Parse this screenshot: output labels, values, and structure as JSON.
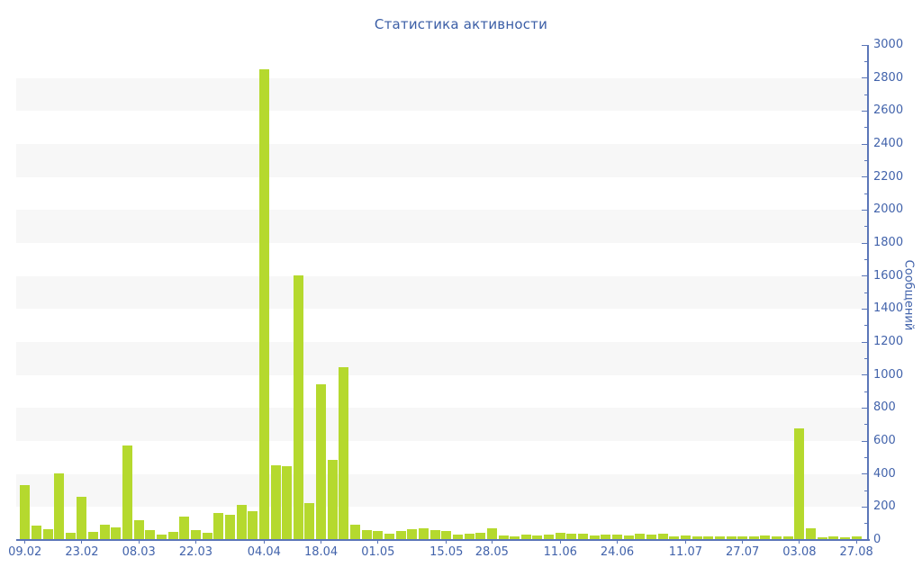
{
  "page": {
    "background": "#ffffff"
  },
  "colors": {
    "bar": "#b5d92e",
    "title_text": "#3b5ea6",
    "tick_text": "#4263ab",
    "axis_line": "#5b76b8",
    "band": "#f7f7f7"
  },
  "chart_data": {
    "type": "bar",
    "title": "Статистика активности",
    "xlabel": "",
    "ylabel": "Сообщений",
    "ylim": [
      0,
      3000
    ],
    "y_major_step": 200,
    "y_minor_step": 100,
    "y_axis_side": "right",
    "legend": "none",
    "grid": "alternating horizontal gray bands every 200 units (200-400, 600-800, 1000-1200, 1400-1600, 1800-2000, 2200-2400, 2600-2800)",
    "y_tick_labels": [
      "0",
      "200",
      "400",
      "600",
      "800",
      "1000",
      "1200",
      "1400",
      "1600",
      "1800",
      "2000",
      "2200",
      "2400",
      "2600",
      "2800",
      "3000"
    ],
    "x_tick_labels": [
      "09.02",
      "23.02",
      "08.03",
      "22.03",
      "04.04",
      "18.04",
      "01.05",
      "15.05",
      "28.05",
      "11.06",
      "24.06",
      "11.07",
      "27.07",
      "03.08",
      "27.08"
    ],
    "x_tick_bar_index": [
      1,
      6,
      11,
      16,
      22,
      27,
      32,
      38,
      42,
      48,
      53,
      59,
      64,
      69,
      74
    ],
    "values": [
      330,
      80,
      60,
      400,
      40,
      255,
      45,
      85,
      70,
      570,
      115,
      55,
      30,
      45,
      135,
      55,
      40,
      160,
      150,
      210,
      170,
      2850,
      450,
      440,
      1600,
      220,
      940,
      480,
      1040,
      90,
      55,
      50,
      35,
      50,
      60,
      65,
      55,
      50,
      25,
      35,
      40,
      65,
      22,
      18,
      27,
      22,
      27,
      40,
      35,
      35,
      22,
      27,
      27,
      22,
      35,
      27,
      35,
      18,
      22,
      18,
      15,
      18,
      15,
      18,
      15,
      22,
      15,
      18,
      670,
      65,
      12,
      18,
      10,
      15
    ]
  }
}
